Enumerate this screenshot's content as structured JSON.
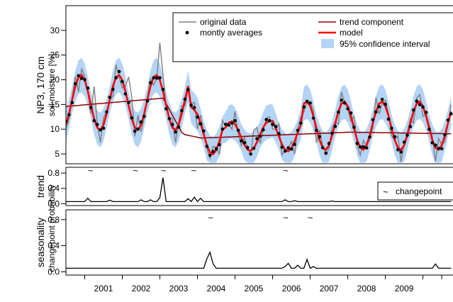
{
  "chart_data": [
    {
      "type": "line",
      "panel": "main",
      "ylabel_line1": "NP3, 170 cm",
      "ylabel_line2": "soil moisture [%]",
      "ylim": [
        3,
        35
      ],
      "yticks": [
        5,
        10,
        15,
        20,
        25,
        30
      ],
      "legend": {
        "placement": "top-right",
        "items": [
          {
            "label": "original data",
            "kind": "line",
            "color": "#808080"
          },
          {
            "label": "trend component",
            "kind": "line",
            "color": "#8b0000"
          },
          {
            "label": "montly averages",
            "kind": "point",
            "color": "#000000"
          },
          {
            "label": "model",
            "kind": "line",
            "color": "#ff0000"
          },
          {
            "label": "95% confidence interval",
            "kind": "band",
            "color": "#b3d4f5"
          }
        ]
      },
      "colors": {
        "original": "#808080",
        "trend": "#8b0000",
        "model": "#ff0000",
        "ci": "#b3d4f5",
        "points": "#000000"
      }
    },
    {
      "type": "line",
      "panel": "trend",
      "ylabel_line1": "trend",
      "ylabel_line2": "changepoint probability",
      "ylim": [
        -0.05,
        0.95
      ],
      "yticks": [
        "0.0",
        "0.4",
        "0.8"
      ],
      "legend": {
        "placement": "right",
        "label": "changepoint"
      },
      "marker_symbol": "~",
      "changepoints_x": [
        2000.65,
        2001.85,
        2002.6,
        2003.4,
        2005.85
      ],
      "peaks": [
        [
          2000.6,
          0.14
        ],
        [
          2001.2,
          0.09
        ],
        [
          2002.0,
          0.1
        ],
        [
          2002.25,
          0.1
        ],
        [
          2002.5,
          0.16
        ],
        [
          2002.6,
          0.68
        ],
        [
          2002.7,
          0.05
        ],
        [
          2003.25,
          0.13
        ],
        [
          2003.45,
          0.17
        ],
        [
          2003.6,
          0.14
        ],
        [
          2005.85,
          0.1
        ],
        [
          2006.1,
          0.08
        ],
        [
          2007.1,
          0.07
        ]
      ]
    },
    {
      "type": "line",
      "panel": "seasonality",
      "ylabel_line1": "seasonality",
      "ylabel_line2": "changepoint probability",
      "ylim": [
        -0.05,
        0.95
      ],
      "yticks": [
        "0.0",
        "0.4",
        "0.8"
      ],
      "marker_symbol": "~",
      "changepoints_x": [
        2003.85,
        2005.85,
        2006.5
      ],
      "peaks": [
        [
          2003.75,
          0.2
        ],
        [
          2003.85,
          0.3
        ],
        [
          2003.95,
          0.12
        ],
        [
          2005.8,
          0.08
        ],
        [
          2005.9,
          0.13
        ],
        [
          2006.2,
          0.1
        ],
        [
          2006.45,
          0.19
        ],
        [
          2006.55,
          0.08
        ],
        [
          2009.85,
          0.12
        ]
      ]
    }
  ],
  "x_axis": {
    "xlim": [
      2000,
      2010.3
    ],
    "tick_labels": [
      "2001",
      "2002",
      "2003",
      "2004",
      "2005",
      "2006",
      "2007",
      "2008",
      "2009"
    ],
    "tick_positions": [
      2000.5,
      2001.5,
      2002.5,
      2003.5,
      2004.5,
      2005.5,
      2006.5,
      2007.5,
      2008.5,
      2009.5,
      2010.0
    ]
  }
}
